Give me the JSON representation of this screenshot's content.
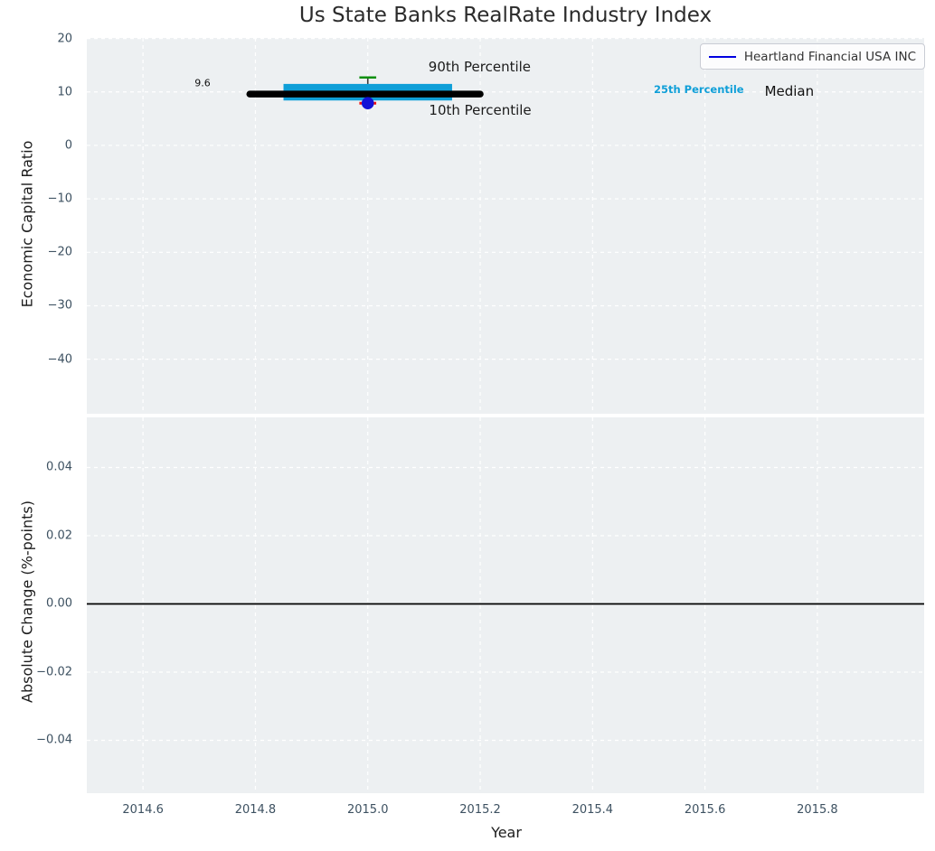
{
  "title": "Us State Banks RealRate Industry Index",
  "legend": {
    "label": "Heartland Financial USA INC"
  },
  "colors": {
    "axes_bg": "#edf0f2",
    "grid": "#ffffff",
    "tick_label": "#3d5161",
    "text": "#1c1c1c",
    "box_fill": "#0f9fd8",
    "median_line": "#000000",
    "whisker": "#3a3a3a",
    "p90_cap": "#0f8f0f",
    "p10_cap": "#ee1111",
    "company_dot": "#1111d6",
    "legend_line": "#0000e0",
    "zero_line": "#000000"
  },
  "chart_data": [
    {
      "type": "box",
      "title": "",
      "xlabel": "",
      "ylabel": "Economic Capital Ratio",
      "xlim": [
        2014.5,
        2015.99
      ],
      "ylim": [
        -50.2,
        20.1
      ],
      "grid": true,
      "legend_position": "upper right",
      "xtick_values": [
        2014.6,
        2014.8,
        2015.0,
        2015.2,
        2015.4,
        2015.6,
        2015.8
      ],
      "xtick_labels": [
        "2014.6",
        "2014.8",
        "2015.0",
        "2015.2",
        "2015.4",
        "2015.6",
        "2015.8"
      ],
      "show_xtick_labels": false,
      "ytick_values": [
        20,
        10,
        0,
        -10,
        -20,
        -30,
        -40
      ],
      "ytick_labels": [
        "20",
        "10",
        "0",
        "−10",
        "−20",
        "−30",
        "−40"
      ],
      "series": [
        {
          "name": "Heartland Financial USA INC",
          "x": 2015.0,
          "median": 9.6,
          "q1": 8.4,
          "q3": 11.5,
          "p10": 7.9,
          "p90": 12.7,
          "company_value": 7.9,
          "median_span": [
            2014.79,
            2015.2
          ],
          "box_span": [
            2014.85,
            2015.15
          ],
          "cap_span": [
            2014.985,
            2015.015
          ]
        }
      ],
      "annotations": [
        {
          "id": "p90-label",
          "text": "90th Percentile",
          "x": 2015.199,
          "y": 14.7,
          "size": 15,
          "color": "#1c1c1c",
          "weight": "normal"
        },
        {
          "id": "p10-label",
          "text": "10th Percentile",
          "x": 2015.2,
          "y": 6.6,
          "size": 15,
          "color": "#1c1c1c",
          "weight": "normal"
        },
        {
          "id": "median-value-label",
          "text": "9.6",
          "x": 2014.706,
          "y": 11.7,
          "size": 11,
          "color": "#111111",
          "weight": "normal"
        },
        {
          "id": "q25-key-label",
          "text": "25th Percentile",
          "x": 2015.589,
          "y": 10.4,
          "size": 11.5,
          "color": "#0f9fd8",
          "weight": "bold"
        },
        {
          "id": "median-key-label",
          "text": "Median",
          "x": 2015.75,
          "y": 10.2,
          "size": 15,
          "color": "#111111",
          "weight": "normal"
        }
      ]
    },
    {
      "type": "line",
      "title": "",
      "xlabel": "Year",
      "ylabel": "Absolute Change (%-points)",
      "xlim": [
        2014.5,
        2015.99
      ],
      "ylim": [
        -0.0555,
        0.0547
      ],
      "grid": true,
      "xtick_values": [
        2014.6,
        2014.8,
        2015.0,
        2015.2,
        2015.4,
        2015.6,
        2015.8
      ],
      "xtick_labels": [
        "2014.6",
        "2014.8",
        "2015.0",
        "2015.2",
        "2015.4",
        "2015.6",
        "2015.8"
      ],
      "show_xtick_labels": true,
      "ytick_values": [
        0.04,
        0.02,
        0.0,
        -0.02,
        -0.04
      ],
      "ytick_labels": [
        "0.04",
        "0.02",
        "0.00",
        "−0.02",
        "−0.04"
      ],
      "zero_line_y": 0.0
    }
  ]
}
